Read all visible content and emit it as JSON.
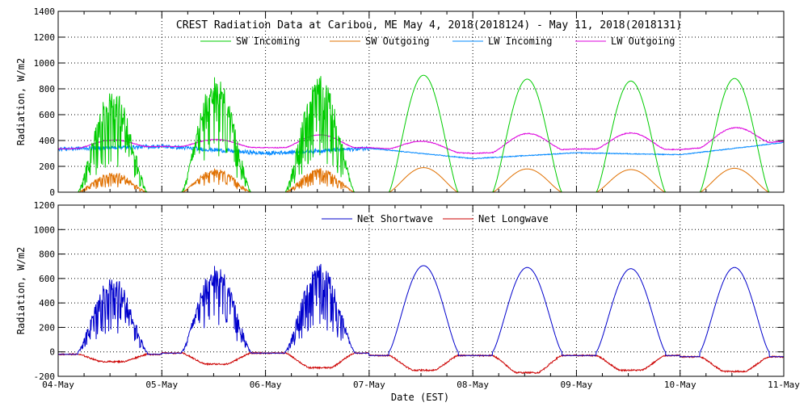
{
  "chart_data": [
    {
      "type": "line",
      "title": "CREST Radiation Data at Caribou, ME   May  4, 2018(2018124) - May 11, 2018(2018131)",
      "ylabel": "Radiation, W/m^2",
      "ylim": [
        0,
        1400
      ],
      "yticks": [
        0,
        200,
        400,
        600,
        800,
        1000,
        1200,
        1400
      ],
      "xlim": [
        0,
        7
      ],
      "grid": true,
      "legend_placement": "top",
      "series": [
        {
          "name": "SW Incoming",
          "color": "#00cc00",
          "peak_per_day": [
            800,
            900,
            900,
            905,
            875,
            860,
            880
          ]
        },
        {
          "name": "SW Outgoing",
          "color": "#e07000",
          "peak_per_day": [
            155,
            185,
            185,
            190,
            180,
            175,
            185
          ]
        },
        {
          "name": "LW Incoming",
          "color": "#0088ff",
          "day_start_values": [
            335,
            355,
            300,
            340,
            260,
            305,
            290,
            385
          ]
        },
        {
          "name": "LW Outgoing",
          "color": "#dd00dd",
          "day_start_values": [
            335,
            355,
            345,
            345,
            300,
            335,
            330,
            395
          ],
          "daily_amplitude": [
            65,
            65,
            110,
            80,
            150,
            140,
            150
          ]
        }
      ]
    },
    {
      "type": "line",
      "ylabel": "Radiation, W/m^2",
      "xlabel": "Date (EST)",
      "ylim": [
        -200,
        1200
      ],
      "yticks": [
        -200,
        0,
        200,
        400,
        600,
        800,
        1000,
        1200
      ],
      "xlim": [
        0,
        7
      ],
      "grid": true,
      "legend_placement": "top",
      "x_tick_labels": [
        "04-May",
        "05-May",
        "06-May",
        "07-May",
        "08-May",
        "09-May",
        "10-May",
        "11-May"
      ],
      "series": [
        {
          "name": "Net Shortwave",
          "color": "#0000cc",
          "peak_per_day": [
            620,
            710,
            720,
            705,
            690,
            680,
            690
          ],
          "night_values": [
            -20,
            -10,
            -10,
            -30,
            -30,
            -30,
            -40
          ]
        },
        {
          "name": "Net Longwave",
          "color": "#cc0000",
          "night_values": [
            -20,
            -10,
            -10,
            -30,
            -30,
            -30,
            -40
          ],
          "midday_values": [
            -80,
            -100,
            -130,
            -150,
            -170,
            -150,
            -160
          ]
        }
      ]
    }
  ]
}
